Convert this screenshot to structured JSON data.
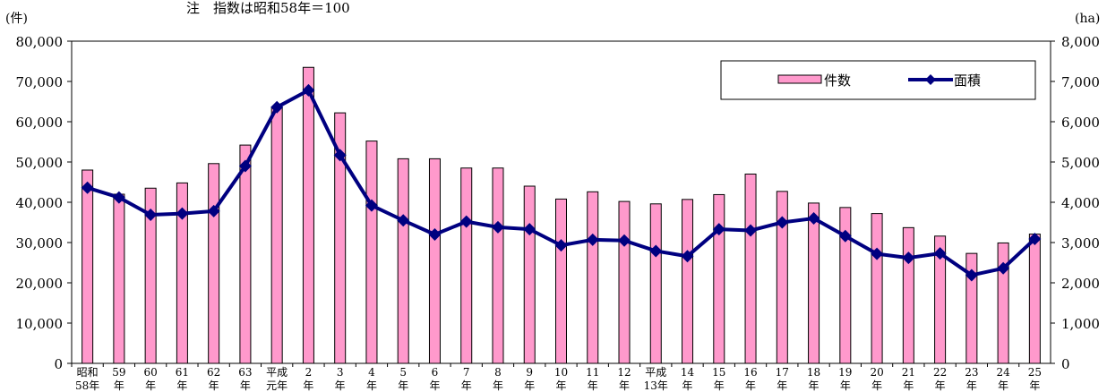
{
  "note": "注　指数は昭和58年＝100",
  "chart_data": {
    "type": "bar+line",
    "left_unit": "(件)",
    "right_unit": "(ha)",
    "left_ylim": [
      0,
      80000
    ],
    "right_ylim": [
      0,
      8000
    ],
    "left_ticks": [
      "0",
      "10,000",
      "20,000",
      "30,000",
      "40,000",
      "50,000",
      "60,000",
      "70,000",
      "80,000"
    ],
    "right_ticks": [
      "0",
      "1,000",
      "2,000",
      "3,000",
      "4,000",
      "5,000",
      "6,000",
      "7,000",
      "8,000"
    ],
    "categories": [
      [
        "昭和",
        "58年"
      ],
      [
        "59",
        "年"
      ],
      [
        "60",
        "年"
      ],
      [
        "61",
        "年"
      ],
      [
        "62",
        "年"
      ],
      [
        "63",
        "年"
      ],
      [
        "平成",
        "元年"
      ],
      [
        "2",
        "年"
      ],
      [
        "3",
        "年"
      ],
      [
        "4",
        "年"
      ],
      [
        "5",
        "年"
      ],
      [
        "6",
        "年"
      ],
      [
        "7",
        "年"
      ],
      [
        "8",
        "年"
      ],
      [
        "9",
        "年"
      ],
      [
        "10",
        "年"
      ],
      [
        "11",
        "年"
      ],
      [
        "12",
        "年"
      ],
      [
        "平成",
        "13年"
      ],
      [
        "14",
        "年"
      ],
      [
        "15",
        "年"
      ],
      [
        "16",
        "年"
      ],
      [
        "17",
        "年"
      ],
      [
        "18",
        "年"
      ],
      [
        "19",
        "年"
      ],
      [
        "20",
        "年"
      ],
      [
        "21",
        "年"
      ],
      [
        "22",
        "年"
      ],
      [
        "23",
        "年"
      ],
      [
        "24",
        "年"
      ],
      [
        "25",
        "年"
      ]
    ],
    "series": [
      {
        "name": "件数",
        "type": "bar",
        "axis": "left",
        "color": "#ff99cc",
        "values": [
          48000,
          42000,
          43500,
          44800,
          49600,
          54200,
          63500,
          73500,
          62200,
          55200,
          50800,
          50800,
          48500,
          48500,
          44000,
          40800,
          42600,
          40200,
          39600,
          40700,
          41900,
          47000,
          42700,
          39800,
          38700,
          37200,
          33700,
          31600,
          27300,
          29900,
          32100
        ]
      },
      {
        "name": "面積",
        "type": "line",
        "axis": "right",
        "color": "#000080",
        "values": [
          4360,
          4120,
          3690,
          3720,
          3780,
          4900,
          6360,
          6780,
          5170,
          3920,
          3550,
          3200,
          3520,
          3380,
          3330,
          2930,
          3070,
          3050,
          2790,
          2660,
          3330,
          3300,
          3500,
          3600,
          3160,
          2720,
          2620,
          2730,
          2190,
          2360,
          3090
        ]
      }
    ],
    "legend": {
      "position": "top-right",
      "entries": [
        "件数",
        "面積"
      ]
    },
    "grid": false
  }
}
